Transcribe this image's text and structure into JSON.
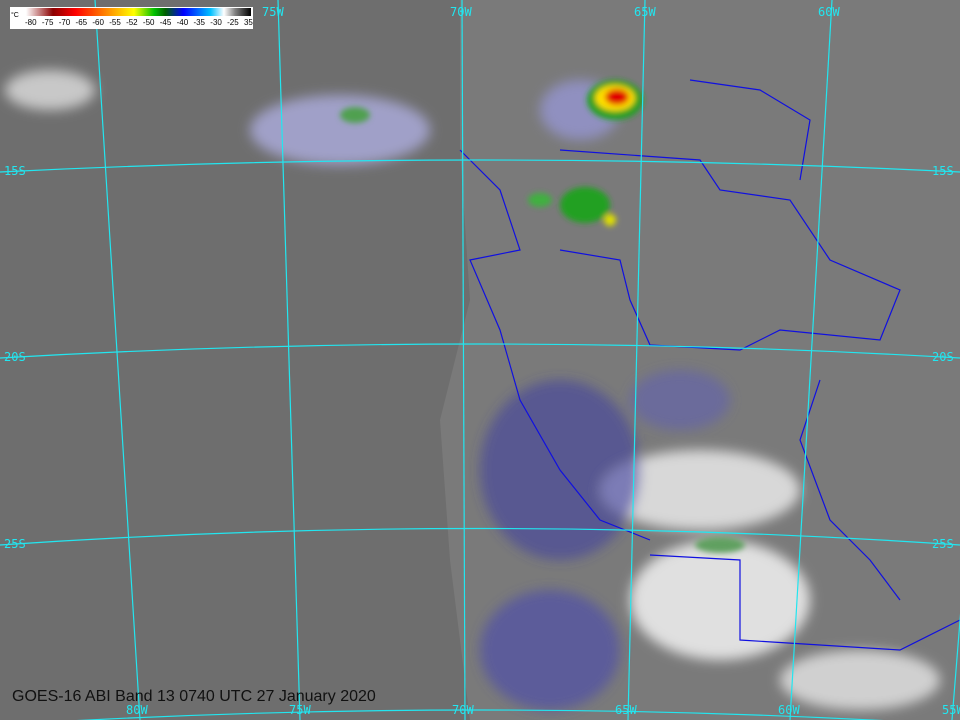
{
  "caption": "GOES-16 ABI Band 13 0740 UTC 27 January 2020",
  "colorbar": {
    "unit": "°C",
    "ticks": [
      "-80",
      "-75",
      "-70",
      "-65",
      "-60",
      "-55",
      "-52",
      "-50",
      "-45",
      "-40",
      "-35",
      "-30",
      "-25",
      "35"
    ]
  },
  "grid_labels": {
    "top": [
      "75W",
      "70W",
      "65W",
      "60W"
    ],
    "bottom": [
      "80W",
      "75W",
      "70W",
      "65W",
      "60W",
      "55W"
    ],
    "left": [
      "15S",
      "20S",
      "25S"
    ],
    "right": [
      "15S",
      "20S",
      "25S"
    ]
  },
  "colors": {
    "grid": "#22e6f0",
    "borders": "#1010e0",
    "background": "#6e6e6e"
  }
}
